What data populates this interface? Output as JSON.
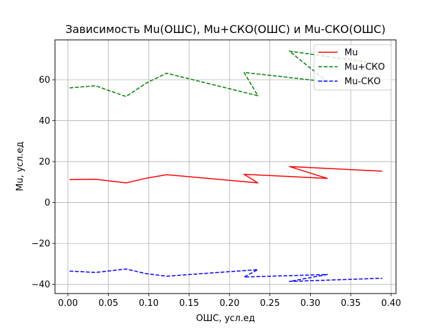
{
  "chart_data": {
    "type": "line",
    "title": "Зависимость Mu(ОШС), Mu+СКО(ОШС) и Mu-СКО(ОШС)",
    "xlabel": "ОШС, усл.ед",
    "ylabel": "Mu, усл.ед",
    "xlim": [
      -0.016,
      0.406
    ],
    "ylim": [
      -44.5,
      79.5
    ],
    "xticks": [
      0.0,
      0.05,
      0.1,
      0.15,
      0.2,
      0.25,
      0.3,
      0.35,
      0.4
    ],
    "xtick_labels": [
      "0.00",
      "0.05",
      "0.10",
      "0.15",
      "0.20",
      "0.25",
      "0.30",
      "0.35",
      "0.40"
    ],
    "yticks": [
      -40,
      -20,
      0,
      20,
      40,
      60
    ],
    "ytick_labels": [
      "−40",
      "−20",
      "0",
      "20",
      "40",
      "60"
    ],
    "grid": true,
    "legend": "top-right",
    "series": [
      {
        "name": "Mu",
        "color": "#ff0000",
        "dash": "solid",
        "x": [
          0.002,
          0.034,
          0.072,
          0.097,
          0.122,
          0.235,
          0.218,
          0.321,
          0.274,
          0.389
        ],
        "y": [
          11.2,
          11.4,
          9.6,
          11.9,
          13.6,
          9.6,
          13.8,
          11.8,
          17.6,
          15.3
        ]
      },
      {
        "name": "Mu+СКО",
        "color": "#008000",
        "dash": "dashed",
        "x": [
          0.002,
          0.034,
          0.072,
          0.097,
          0.122,
          0.235,
          0.218,
          0.321,
          0.274,
          0.389
        ],
        "y": [
          56.0,
          57.1,
          51.8,
          58.4,
          63.2,
          52.2,
          63.6,
          59.0,
          74.0,
          67.6
        ]
      },
      {
        "name": "Mu-СКО",
        "color": "#0000ff",
        "dash": "dashed",
        "x": [
          0.002,
          0.034,
          0.072,
          0.097,
          0.122,
          0.235,
          0.218,
          0.321,
          0.274,
          0.389
        ],
        "y": [
          -33.5,
          -34.2,
          -32.5,
          -34.8,
          -36.0,
          -32.8,
          -36.4,
          -35.2,
          -38.6,
          -37.0
        ]
      }
    ]
  }
}
